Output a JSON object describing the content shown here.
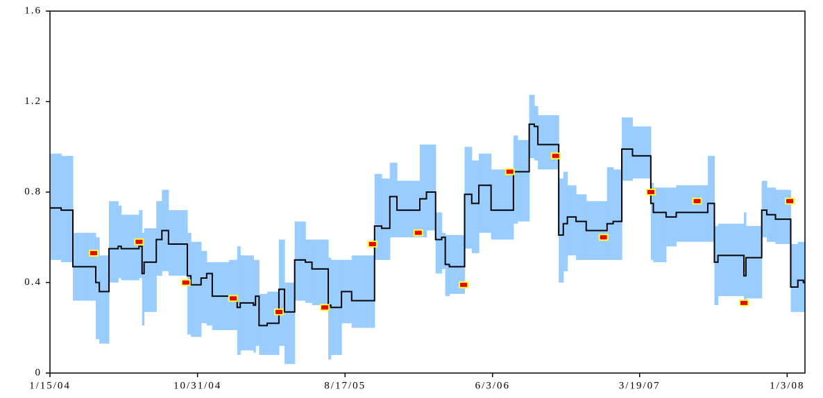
{
  "chart_data": {
    "type": "line",
    "x": [
      "2004-01-15",
      "2004-02-06",
      "2004-02-29",
      "2004-03-29",
      "2004-04-14",
      "2004-04-21",
      "2004-05-10",
      "2004-05-28",
      "2004-06-03",
      "2004-07-08",
      "2004-07-14",
      "2004-07-18",
      "2004-08-11",
      "2004-08-22",
      "2004-09-04",
      "2004-10-11",
      "2004-10-18",
      "2004-11-07",
      "2004-11-18",
      "2004-11-29",
      "2005-01-01",
      "2005-01-17",
      "2005-01-23",
      "2005-02-18",
      "2005-02-22",
      "2005-03-01",
      "2005-03-17",
      "2005-04-09",
      "2005-04-20",
      "2005-05-10",
      "2005-05-31",
      "2005-06-13",
      "2005-07-15",
      "2005-07-20",
      "2005-08-10",
      "2005-08-30",
      "2005-10-14",
      "2005-10-28",
      "2005-11-13",
      "2005-11-27",
      "2006-01-11",
      "2006-01-24",
      "2006-02-11",
      "2006-02-23",
      "2006-03-02",
      "2006-03-10",
      "2006-04-09",
      "2006-04-23",
      "2006-05-07",
      "2006-05-31",
      "2006-07-14",
      "2006-07-22",
      "2006-08-14",
      "2006-08-24",
      "2006-08-31",
      "2006-10-11",
      "2006-10-20",
      "2006-10-28",
      "2006-11-14",
      "2006-12-04",
      "2007-01-07",
      "2007-01-14",
      "2007-01-26",
      "2007-02-12",
      "2007-03-05",
      "2007-04-10",
      "2007-04-15",
      "2007-05-10",
      "2007-05-30",
      "2007-07-31",
      "2007-08-13",
      "2007-08-20",
      "2007-10-10",
      "2007-10-14",
      "2007-11-14",
      "2007-11-24",
      "2007-12-11",
      "2008-01-10",
      "2008-01-24",
      "2008-02-04"
    ],
    "series": [
      {
        "color": "#000000",
        "values": [
          0.73,
          0.72,
          0.47,
          0.47,
          0.4,
          0.36,
          0.55,
          0.56,
          0.55,
          0.56,
          0.44,
          0.49,
          0.59,
          0.63,
          0.57,
          0.43,
          0.39,
          0.42,
          0.44,
          0.34,
          0.33,
          0.29,
          0.31,
          0.3,
          0.34,
          0.21,
          0.22,
          0.37,
          0.27,
          0.5,
          0.49,
          0.46,
          0.3,
          0.29,
          0.36,
          0.32,
          0.65,
          0.64,
          0.78,
          0.72,
          0.77,
          0.8,
          0.59,
          0.6,
          0.48,
          0.47,
          0.79,
          0.75,
          0.83,
          0.72,
          0.89,
          0.89,
          1.1,
          1.09,
          1.01,
          0.61,
          0.66,
          0.69,
          0.67,
          0.63,
          0.63,
          0.66,
          0.67,
          0.99,
          0.96,
          0.75,
          0.71,
          0.69,
          0.71,
          0.75,
          0.49,
          0.52,
          0.43,
          0.51,
          0.72,
          0.7,
          0.68,
          0.38,
          0.41,
          0.4
        ]
      }
    ],
    "band": {
      "color": "#99ccff",
      "upper": [
        0.97,
        0.96,
        0.62,
        0.62,
        0.6,
        0.52,
        0.76,
        0.74,
        0.7,
        0.72,
        0.62,
        0.64,
        0.76,
        0.81,
        0.72,
        0.62,
        0.58,
        0.54,
        0.49,
        0.49,
        0.5,
        0.56,
        0.52,
        0.5,
        0.5,
        0.35,
        0.36,
        0.59,
        0.4,
        0.67,
        0.59,
        0.59,
        0.51,
        0.5,
        0.5,
        0.52,
        0.88,
        0.86,
        0.93,
        0.85,
        1.01,
        1.01,
        0.71,
        0.62,
        0.61,
        0.61,
        1.0,
        0.94,
        0.97,
        0.9,
        1.05,
        1.03,
        1.23,
        1.18,
        1.14,
        0.86,
        0.89,
        0.83,
        0.79,
        0.76,
        0.76,
        0.91,
        0.9,
        1.13,
        1.09,
        0.84,
        0.82,
        0.82,
        0.83,
        0.96,
        0.65,
        0.66,
        0.71,
        0.65,
        0.85,
        0.82,
        0.81,
        0.57,
        0.58,
        0.58
      ],
      "lower": [
        0.5,
        0.49,
        0.32,
        0.32,
        0.15,
        0.13,
        0.4,
        0.42,
        0.41,
        0.42,
        0.21,
        0.27,
        0.43,
        0.45,
        0.43,
        0.17,
        0.16,
        0.22,
        0.21,
        0.19,
        0.19,
        0.08,
        0.1,
        0.09,
        0.12,
        0.08,
        0.08,
        0.12,
        0.04,
        0.32,
        0.31,
        0.3,
        0.06,
        0.08,
        0.22,
        0.2,
        0.5,
        0.5,
        0.6,
        0.6,
        0.6,
        0.63,
        0.44,
        0.46,
        0.34,
        0.35,
        0.55,
        0.53,
        0.62,
        0.59,
        0.66,
        0.67,
        0.95,
        0.94,
        0.9,
        0.4,
        0.45,
        0.52,
        0.5,
        0.5,
        0.5,
        0.5,
        0.5,
        0.85,
        0.86,
        0.5,
        0.49,
        0.56,
        0.58,
        0.58,
        0.3,
        0.34,
        0.32,
        0.33,
        0.6,
        0.58,
        0.57,
        0.27,
        0.27,
        0.27
      ]
    },
    "markers": {
      "color": "#ee0000",
      "edge": "#ffff33",
      "x": [
        "2004-04-10",
        "2004-07-08",
        "2004-10-08",
        "2005-01-09",
        "2005-04-09",
        "2005-07-08",
        "2005-10-10",
        "2006-01-08",
        "2006-04-07",
        "2006-07-07",
        "2006-10-05",
        "2007-01-07",
        "2007-04-10",
        "2007-07-10",
        "2007-10-10",
        "2008-01-08"
      ],
      "values": [
        0.53,
        0.58,
        0.4,
        0.33,
        0.27,
        0.29,
        0.57,
        0.62,
        0.39,
        0.89,
        0.96,
        0.6,
        0.8,
        0.76,
        0.31,
        0.76
      ]
    },
    "xlim": [
      "2004-01-15",
      "2008-02-07"
    ],
    "xticks": [
      {
        "value": "2004-01-15",
        "label": "1/15/04"
      },
      {
        "value": "2004-10-31",
        "label": "10/31/04"
      },
      {
        "value": "2005-08-17",
        "label": "8/17/05"
      },
      {
        "value": "2006-06-03",
        "label": "6/3/06"
      },
      {
        "value": "2007-03-19",
        "label": "3/19/07"
      },
      {
        "value": "2008-01-03",
        "label": "1/3/08"
      }
    ],
    "ylim": [
      0,
      1.6
    ],
    "yticks": [
      0,
      0.4,
      0.8,
      1.2,
      1.6
    ]
  }
}
